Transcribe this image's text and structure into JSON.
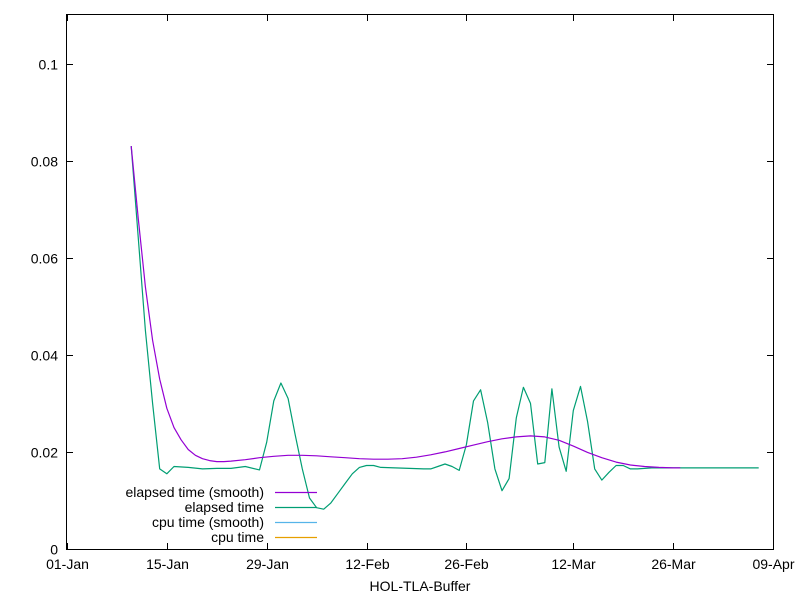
{
  "chart_data": {
    "type": "line",
    "title": "",
    "xlabel": "HOL-TLA-Buffer",
    "ylabel": "",
    "x_axis": {
      "type": "date",
      "range": [
        "2024-01-01",
        "2024-04-09"
      ],
      "ticks": [
        {
          "date": "2024-01-01",
          "label": "01-Jan"
        },
        {
          "date": "2024-01-15",
          "label": "15-Jan"
        },
        {
          "date": "2024-01-29",
          "label": "29-Jan"
        },
        {
          "date": "2024-02-12",
          "label": "12-Feb"
        },
        {
          "date": "2024-02-26",
          "label": "26-Feb"
        },
        {
          "date": "2024-03-12",
          "label": "12-Mar"
        },
        {
          "date": "2024-03-26",
          "label": "26-Mar"
        },
        {
          "date": "2024-04-09",
          "label": "09-Apr"
        }
      ]
    },
    "y_axis": {
      "range": [
        0,
        0.11
      ],
      "ticks": [
        {
          "value": 0,
          "label": "0"
        },
        {
          "value": 0.02,
          "label": "0.02"
        },
        {
          "value": 0.04,
          "label": "0.04"
        },
        {
          "value": 0.06,
          "label": "0.06"
        },
        {
          "value": 0.08,
          "label": "0.08"
        },
        {
          "value": 0.1,
          "label": "0.1"
        }
      ]
    },
    "grid": false,
    "legend_position": "bottom-left",
    "series": [
      {
        "name": "elapsed time (smooth)",
        "color": "#9400d3",
        "points": [
          [
            "2024-01-10",
            0.083
          ],
          [
            "2024-01-11",
            0.068
          ],
          [
            "2024-01-12",
            0.054
          ],
          [
            "2024-01-13",
            0.043
          ],
          [
            "2024-01-14",
            0.035
          ],
          [
            "2024-01-15",
            0.029
          ],
          [
            "2024-01-16",
            0.025
          ],
          [
            "2024-01-17",
            0.0225
          ],
          [
            "2024-01-18",
            0.0205
          ],
          [
            "2024-01-19",
            0.0193
          ],
          [
            "2024-01-20",
            0.0186
          ],
          [
            "2024-01-21",
            0.0182
          ],
          [
            "2024-01-22",
            0.018
          ],
          [
            "2024-01-23",
            0.018
          ],
          [
            "2024-01-24",
            0.0181
          ],
          [
            "2024-01-26",
            0.0184
          ],
          [
            "2024-01-28",
            0.0188
          ],
          [
            "2024-01-30",
            0.0191
          ],
          [
            "2024-02-01",
            0.0193
          ],
          [
            "2024-02-03",
            0.0193
          ],
          [
            "2024-02-05",
            0.0192
          ],
          [
            "2024-02-07",
            0.019
          ],
          [
            "2024-02-09",
            0.0188
          ],
          [
            "2024-02-11",
            0.0186
          ],
          [
            "2024-02-13",
            0.0185
          ],
          [
            "2024-02-15",
            0.0185
          ],
          [
            "2024-02-17",
            0.0186
          ],
          [
            "2024-02-19",
            0.0189
          ],
          [
            "2024-02-21",
            0.0194
          ],
          [
            "2024-02-23",
            0.02
          ],
          [
            "2024-02-25",
            0.0207
          ],
          [
            "2024-02-27",
            0.0214
          ],
          [
            "2024-02-29",
            0.0221
          ],
          [
            "2024-03-02",
            0.0227
          ],
          [
            "2024-03-04",
            0.0231
          ],
          [
            "2024-03-06",
            0.0233
          ],
          [
            "2024-03-08",
            0.0231
          ],
          [
            "2024-03-10",
            0.0224
          ],
          [
            "2024-03-12",
            0.0212
          ],
          [
            "2024-03-14",
            0.0199
          ],
          [
            "2024-03-16",
            0.0188
          ],
          [
            "2024-03-18",
            0.0179
          ],
          [
            "2024-03-20",
            0.0173
          ],
          [
            "2024-03-22",
            0.017
          ],
          [
            "2024-03-24",
            0.0168
          ],
          [
            "2024-03-26",
            0.0167
          ],
          [
            "2024-03-27",
            0.0167
          ]
        ]
      },
      {
        "name": "elapsed time",
        "color": "#009e73",
        "points": [
          [
            "2024-01-10",
            0.083
          ],
          [
            "2024-01-11",
            0.064
          ],
          [
            "2024-01-12",
            0.045
          ],
          [
            "2024-01-13",
            0.03
          ],
          [
            "2024-01-14",
            0.0165
          ],
          [
            "2024-01-15",
            0.0155
          ],
          [
            "2024-01-16",
            0.017
          ],
          [
            "2024-01-18",
            0.0168
          ],
          [
            "2024-01-20",
            0.0165
          ],
          [
            "2024-01-22",
            0.0166
          ],
          [
            "2024-01-24",
            0.0166
          ],
          [
            "2024-01-26",
            0.017
          ],
          [
            "2024-01-28",
            0.0163
          ],
          [
            "2024-01-29",
            0.022
          ],
          [
            "2024-01-30",
            0.0305
          ],
          [
            "2024-01-31",
            0.0342
          ],
          [
            "2024-02-01",
            0.031
          ],
          [
            "2024-02-02",
            0.0235
          ],
          [
            "2024-02-03",
            0.0165
          ],
          [
            "2024-02-04",
            0.0105
          ],
          [
            "2024-02-05",
            0.0085
          ],
          [
            "2024-02-06",
            0.0082
          ],
          [
            "2024-02-07",
            0.0095
          ],
          [
            "2024-02-08",
            0.0115
          ],
          [
            "2024-02-09",
            0.0135
          ],
          [
            "2024-02-10",
            0.0155
          ],
          [
            "2024-02-11",
            0.0168
          ],
          [
            "2024-02-12",
            0.0172
          ],
          [
            "2024-02-13",
            0.0172
          ],
          [
            "2024-02-14",
            0.0168
          ],
          [
            "2024-02-16",
            0.0167
          ],
          [
            "2024-02-18",
            0.0166
          ],
          [
            "2024-02-20",
            0.0165
          ],
          [
            "2024-02-21",
            0.0165
          ],
          [
            "2024-02-22",
            0.017
          ],
          [
            "2024-02-23",
            0.0175
          ],
          [
            "2024-02-24",
            0.017
          ],
          [
            "2024-02-25",
            0.0162
          ],
          [
            "2024-02-26",
            0.0215
          ],
          [
            "2024-02-27",
            0.0305
          ],
          [
            "2024-02-28",
            0.0328
          ],
          [
            "2024-02-29",
            0.026
          ],
          [
            "2024-03-01",
            0.0165
          ],
          [
            "2024-03-02",
            0.012
          ],
          [
            "2024-03-03",
            0.0145
          ],
          [
            "2024-03-04",
            0.027
          ],
          [
            "2024-03-05",
            0.0333
          ],
          [
            "2024-03-06",
            0.03
          ],
          [
            "2024-03-07",
            0.0175
          ],
          [
            "2024-03-08",
            0.0178
          ],
          [
            "2024-03-09",
            0.033
          ],
          [
            "2024-03-10",
            0.021
          ],
          [
            "2024-03-11",
            0.016
          ],
          [
            "2024-03-12",
            0.0285
          ],
          [
            "2024-03-13",
            0.0335
          ],
          [
            "2024-03-14",
            0.0262
          ],
          [
            "2024-03-15",
            0.0165
          ],
          [
            "2024-03-16",
            0.0142
          ],
          [
            "2024-03-17",
            0.0158
          ],
          [
            "2024-03-18",
            0.0172
          ],
          [
            "2024-03-19",
            0.0172
          ],
          [
            "2024-03-20",
            0.0165
          ],
          [
            "2024-03-21",
            0.0165
          ],
          [
            "2024-03-23",
            0.0167
          ],
          [
            "2024-03-26",
            0.0167
          ],
          [
            "2024-03-29",
            0.0167
          ],
          [
            "2024-04-01",
            0.0167
          ],
          [
            "2024-04-04",
            0.0167
          ],
          [
            "2024-04-07",
            0.0167
          ]
        ]
      },
      {
        "name": "cpu time (smooth)",
        "color": "#56b4e9",
        "points": []
      },
      {
        "name": "cpu time",
        "color": "#e69f00",
        "points": []
      }
    ]
  }
}
